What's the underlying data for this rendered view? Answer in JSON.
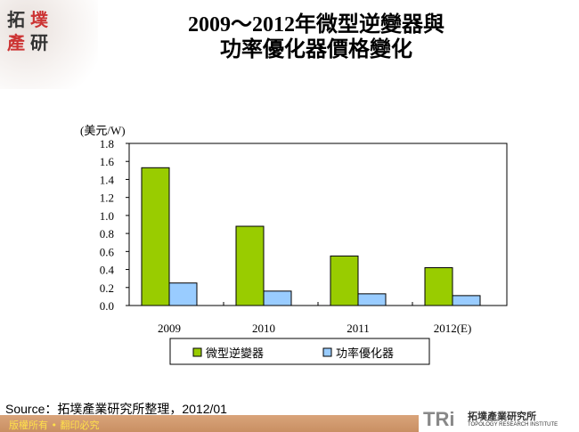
{
  "logo": {
    "line1": "拓",
    "line2": "墣",
    "line3": "產",
    "line4": "研"
  },
  "title": {
    "line1": "2009～2012年微型逆變器與",
    "line2": "功率優化器價格變化"
  },
  "chart_data": {
    "type": "bar",
    "ylabel": "(美元/W)",
    "categories": [
      "2009",
      "2010",
      "2011",
      "2012(E)"
    ],
    "series": [
      {
        "name": "微型逆變器",
        "color": "#99cc00",
        "values": [
          1.53,
          0.88,
          0.55,
          0.42
        ]
      },
      {
        "name": "功率優化器",
        "color": "#99ccff",
        "values": [
          0.25,
          0.16,
          0.13,
          0.11
        ]
      }
    ],
    "ylim": [
      0,
      1.8
    ],
    "yticks": [
      "0.0",
      "0.2",
      "0.4",
      "0.6",
      "0.8",
      "1.0",
      "1.2",
      "1.4",
      "1.6",
      "1.8"
    ],
    "grid": false,
    "legend": "bottom"
  },
  "source": "Source：拓墣產業研究所整理，2012/01",
  "footer": "版權所有 • 翻印必究",
  "brand": {
    "mark": "TRi",
    "name": "拓墣產業研究所",
    "english": "TOPOLOGY RESEARCH INSTITUTE"
  }
}
